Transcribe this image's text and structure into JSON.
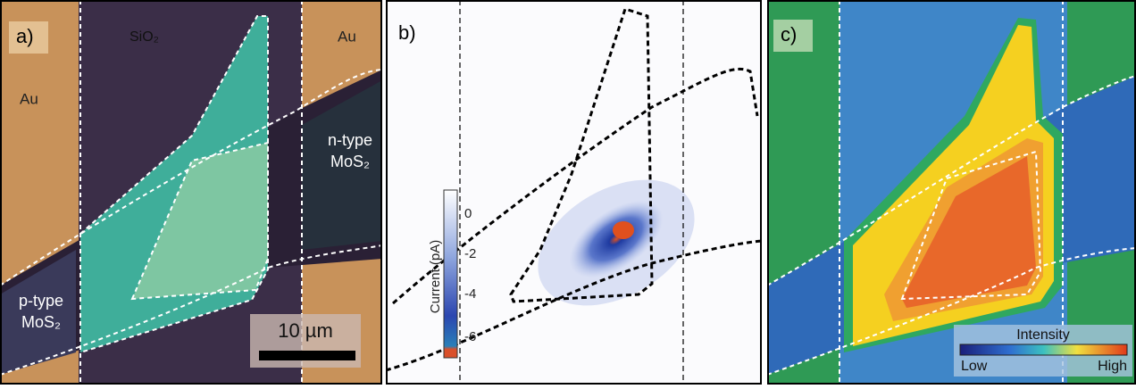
{
  "panels": [
    {
      "label": "a)",
      "annotations": [
        "SiO₂",
        "Au",
        "Au",
        "n-type",
        "MoS₂",
        "p-type",
        "MoS₂"
      ],
      "scale_bar": "10 µm"
    },
    {
      "label": "b)",
      "colorbar": {
        "label": "Current (pA)",
        "ticks": [
          "0",
          "-2",
          "-4",
          "-6"
        ]
      }
    },
    {
      "label": "c)",
      "colorbar": {
        "label": "Intensity",
        "low": "Low",
        "high": "High"
      }
    }
  ]
}
